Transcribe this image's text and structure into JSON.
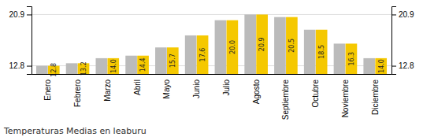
{
  "chart_data": {
    "type": "bar",
    "title": "Temperaturas Medias en leaburu",
    "categories": [
      "Enero",
      "Febrero",
      "Marzo",
      "Abril",
      "Mayo",
      "Junio",
      "Julio",
      "Agosto",
      "Septiembre",
      "Octubre",
      "Noviembre",
      "Diciembre"
    ],
    "series": [
      {
        "color": "#BBBBBB",
        "values": [
          12.8,
          13.2,
          14.0,
          14.4,
          15.7,
          17.6,
          20.0,
          20.9,
          20.5,
          18.5,
          16.3,
          14.0
        ]
      },
      {
        "color": "#F5C800",
        "values": [
          12.8,
          13.2,
          14.0,
          14.4,
          15.7,
          17.6,
          20.0,
          20.9,
          20.5,
          18.5,
          16.3,
          14.0
        ],
        "value_labels": [
          "12.8",
          "13.2",
          "14.0",
          "14.4",
          "15.7",
          "17.6",
          "20.0",
          "20.9",
          "20.5",
          "18.5",
          "16.3",
          "14.0"
        ]
      }
    ],
    "ylim": [
      11.5,
      22.2
    ],
    "yticks": [
      12.8,
      20.9
    ],
    "y2lim": [
      11.5,
      22.2
    ],
    "y2ticks": [
      12.8,
      20.9
    ],
    "grid": true,
    "data_labels": true
  }
}
